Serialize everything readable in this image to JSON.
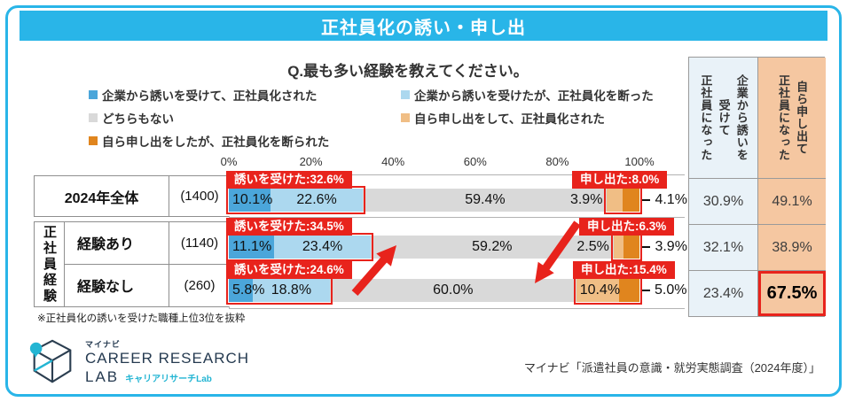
{
  "title": "正社員化の誘い・申し出",
  "question": "Q.最も多い経験を教えてください。",
  "legend": {
    "items": [
      {
        "label": "企業から誘いを受けて、正社員化された",
        "color": "#4BA6DA"
      },
      {
        "label": "企業から誘いを受けたが、正社員化を断った",
        "color": "#ACD8EF"
      },
      {
        "label": "どちらもない",
        "color": "#D9D9D9"
      },
      {
        "label": "自ら申し出をして、正社員化された",
        "color": "#F0BE85"
      },
      {
        "label": "自ら申し出をしたが、正社員化を断られた",
        "color": "#E0851E"
      }
    ]
  },
  "chart_data": {
    "type": "bar",
    "orientation": "horizontal-stacked",
    "x_range": [
      0,
      100
    ],
    "x_ticks": [
      "0%",
      "20%",
      "40%",
      "60%",
      "80%",
      "100%"
    ],
    "series_names": [
      "企業から誘いを受けて、正社員化された",
      "企業から誘いを受けたが、正社員化を断った",
      "どちらもない",
      "自ら申し出をして、正社員化された",
      "自ら申し出をしたが、正社員化を断られた"
    ],
    "series_colors": [
      "#4BA6DA",
      "#ACD8EF",
      "#D9D9D9",
      "#F0BE85",
      "#E0851E"
    ],
    "group_label": "正社員経験",
    "rows": [
      {
        "label": "2024年全体",
        "n": "(1400)",
        "values": [
          10.1,
          22.6,
          59.4,
          3.9,
          4.1
        ],
        "labels": [
          "10.1%",
          "22.6%",
          "59.4%",
          "3.9%",
          "4.1%"
        ],
        "callout_invite": "誘いを受けた:32.6%",
        "callout_offer": "申し出た:8.0%"
      },
      {
        "label": "経験あり",
        "n": "(1140)",
        "values": [
          11.1,
          23.4,
          59.2,
          2.5,
          3.9
        ],
        "labels": [
          "11.1%",
          "23.4%",
          "59.2%",
          "2.5%",
          "3.9%"
        ],
        "callout_invite": "誘いを受けた:34.5%",
        "callout_offer": "申し出た:6.3%"
      },
      {
        "label": "経験なし",
        "n": "(260)",
        "values": [
          5.8,
          18.8,
          60.0,
          10.4,
          5.0
        ],
        "labels": [
          "5.8%",
          "18.8%",
          "60.0%",
          "10.4%",
          "5.0%"
        ],
        "callout_invite": "誘いを受けた:24.6%",
        "callout_offer": "申し出た:15.4%"
      }
    ]
  },
  "side_table": {
    "columns": [
      {
        "header": "企業から誘いを\n受けて\n正社員になった",
        "bg": "#E9F2F8",
        "values": [
          "30.9%",
          "32.1%",
          "23.4%"
        ]
      },
      {
        "header": "自ら申し出て\n正社員になった",
        "bg": "#F5C7A1",
        "values": [
          "49.1%",
          "38.9%",
          "67.5%"
        ],
        "highlight_index": 2
      }
    ]
  },
  "footnote": "※正社員化の誘いを受けた職種上位3位を抜粋",
  "source": "マイナビ「派遣社員の意識・就労実態調査（2024年度）」",
  "logo": {
    "brand": "マイナビ",
    "line1": "CAREER RESEARCH",
    "line2": "LAB",
    "sub": "キャリアリサーチLab"
  },
  "colors": {
    "accent": "#29B5E8",
    "red": "#E8231C"
  }
}
